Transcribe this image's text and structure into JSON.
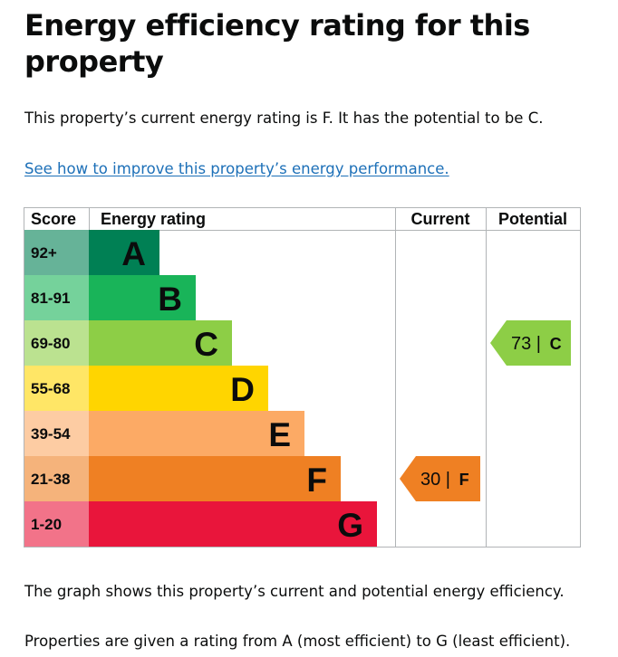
{
  "heading": "Energy efficiency rating for this property",
  "summary": "This property’s current energy rating is F. It has the potential to be C.",
  "improve_link": "See how to improve this property’s energy performance.",
  "footer_1": "The graph shows this property’s current and potential energy efficiency.",
  "footer_2": "Properties are given a rating from A (most efficient) to G (least efficient).",
  "chart_data": {
    "type": "bar",
    "headers": {
      "score": "Score",
      "rating": "Energy rating",
      "current": "Current",
      "potential": "Potential"
    },
    "bands": [
      {
        "score": "92+",
        "letter": "A",
        "color": "#008054",
        "score_bg": "#66b398"
      },
      {
        "score": "81-91",
        "letter": "B",
        "color": "#19b459",
        "score_bg": "#75d29b"
      },
      {
        "score": "69-80",
        "letter": "C",
        "color": "#8dce46",
        "score_bg": "#bbe290"
      },
      {
        "score": "55-68",
        "letter": "D",
        "color": "#ffd500",
        "score_bg": "#ffe666"
      },
      {
        "score": "39-54",
        "letter": "E",
        "color": "#fcaa65",
        "score_bg": "#fdcca3"
      },
      {
        "score": "21-38",
        "letter": "F",
        "color": "#ef8023",
        "score_bg": "#f5b37b"
      },
      {
        "score": "1-20",
        "letter": "G",
        "color": "#e9153b",
        "score_bg": "#f27389"
      }
    ],
    "current": {
      "value": 30,
      "band": "F",
      "color": "#ef8023"
    },
    "potential": {
      "value": 73,
      "band": "C",
      "color": "#8dce46"
    },
    "separator": "|"
  }
}
